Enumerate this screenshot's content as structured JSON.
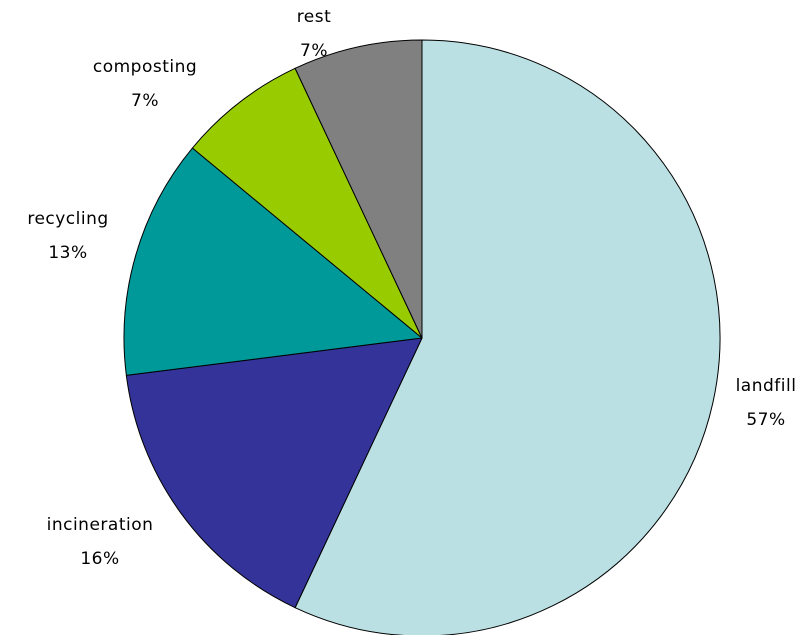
{
  "chart_data": {
    "type": "pie",
    "title": "",
    "start_angle_deg": 0,
    "direction": "clockwise",
    "slices": [
      {
        "label": "landfill",
        "value": 57,
        "value_label": "57%",
        "color": "#bbe0e3"
      },
      {
        "label": "incineration",
        "value": 16,
        "value_label": "16%",
        "color": "#333399"
      },
      {
        "label": "recycling",
        "value": 13,
        "value_label": "13%",
        "color": "#009999"
      },
      {
        "label": "composting",
        "value": 7,
        "value_label": "7%",
        "color": "#99cc00"
      },
      {
        "label": "rest",
        "value": 7,
        "value_label": "7%",
        "color": "#808080"
      }
    ]
  }
}
